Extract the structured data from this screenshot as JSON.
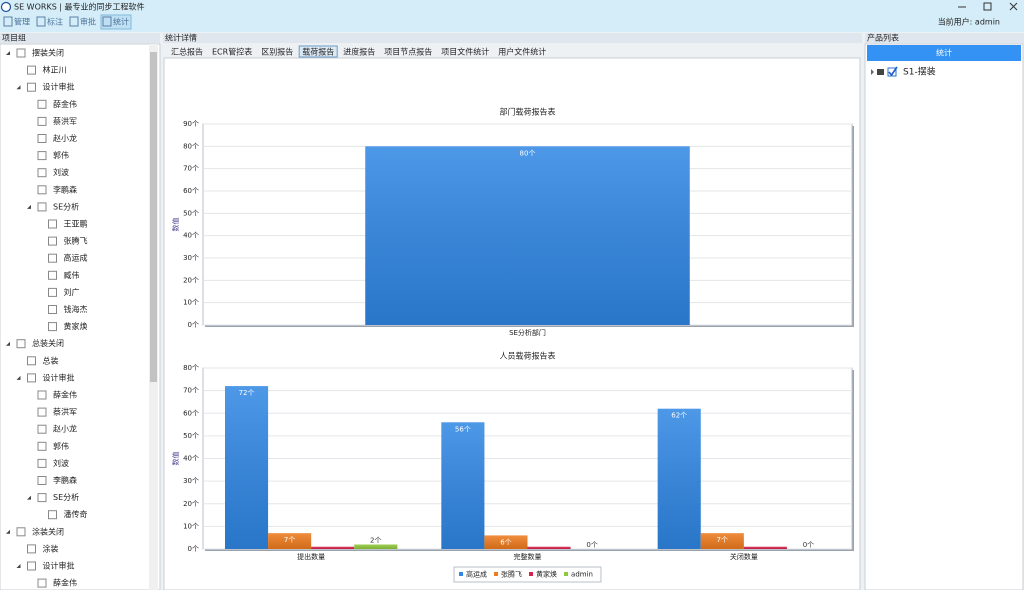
{
  "title_bar": {
    "title": "SE WORKS | 最专业的同步工程软件"
  },
  "toolbar": {
    "items": [
      "管理",
      "标注",
      "审批",
      "统计"
    ],
    "active": 3,
    "user": "当前用户: admin"
  },
  "left_panel": {
    "title": "项目组",
    "tree": [
      {
        "label": "摆装关闭",
        "children": [
          {
            "label": "林正川"
          },
          {
            "label": "设计审批",
            "children": [
              {
                "label": "薛金伟"
              },
              {
                "label": "蔡洪军"
              },
              {
                "label": "赵小龙"
              },
              {
                "label": "郭伟"
              },
              {
                "label": "刘波"
              },
              {
                "label": "李鹏森"
              },
              {
                "label": "SE分析",
                "children": [
                  {
                    "label": "王亚鹏"
                  },
                  {
                    "label": "张腾飞"
                  },
                  {
                    "label": "高运成"
                  },
                  {
                    "label": "臧伟"
                  },
                  {
                    "label": "刘广"
                  },
                  {
                    "label": "钱海杰"
                  },
                  {
                    "label": "黄家焕"
                  }
                ]
              }
            ]
          }
        ]
      },
      {
        "label": "总装关闭",
        "children": [
          {
            "label": "总装"
          },
          {
            "label": "设计审批",
            "children": [
              {
                "label": "薛金伟"
              },
              {
                "label": "蔡洪军"
              },
              {
                "label": "赵小龙"
              },
              {
                "label": "郭伟"
              },
              {
                "label": "刘波"
              },
              {
                "label": "李鹏森"
              },
              {
                "label": "SE分析",
                "children": [
                  {
                    "label": "潘传奇"
                  }
                ]
              }
            ]
          }
        ]
      },
      {
        "label": "涂装关闭",
        "children": [
          {
            "label": "涂装"
          },
          {
            "label": "设计审批",
            "children": [
              {
                "label": "薛金伟"
              }
            ]
          }
        ]
      }
    ]
  },
  "main_panel": {
    "title": "统计详情",
    "tabs": [
      "汇总报告",
      "ECR管控表",
      "区别报告",
      "载荷报告",
      "进度报告",
      "项目节点报告",
      "项目文件统计",
      "用户文件统计"
    ],
    "active_tab": 3
  },
  "chart_data": [
    {
      "type": "bar",
      "title": "部门载荷报告表",
      "ylabel": "数值",
      "categories": [
        "SE分析部门"
      ],
      "values": [
        80
      ],
      "value_labels": [
        "80个"
      ],
      "color": "#2f86e4",
      "ylim": [
        0,
        90
      ],
      "yticks": [
        {
          "value": 0,
          "label": "0个"
        },
        {
          "value": 10,
          "label": "10个"
        },
        {
          "value": 20,
          "label": "20个"
        },
        {
          "value": 30,
          "label": "30个"
        },
        {
          "value": 40,
          "label": "40个"
        },
        {
          "value": 50,
          "label": "50个"
        },
        {
          "value": 60,
          "label": "60个"
        },
        {
          "value": 70,
          "label": "70个"
        },
        {
          "value": 80,
          "label": "80个"
        },
        {
          "value": 90,
          "label": "90个"
        }
      ],
      "grid": true
    },
    {
      "type": "grouped_bar",
      "title": "人员载荷报告表",
      "ylabel": "数值",
      "categories": [
        "提出数量",
        "完整数量",
        "关闭数量"
      ],
      "series": [
        {
          "name": "高运成",
          "color": "#2f86e4",
          "values": [
            72,
            56,
            62
          ],
          "value_labels": [
            "72个",
            "56个",
            "62个"
          ]
        },
        {
          "name": "张腾飞",
          "color": "#ee7a1c",
          "values": [
            7,
            6,
            7
          ],
          "value_labels": [
            "7个",
            "6个",
            "7个"
          ]
        },
        {
          "name": "黄家焕",
          "color": "#d8204a",
          "values": [
            1,
            1,
            1
          ]
        },
        {
          "name": "admin",
          "color": "#8fc93a",
          "values": [
            2,
            0,
            0
          ],
          "value_labels": [
            "2个",
            "0个",
            "0个"
          ]
        }
      ],
      "ylim": [
        0,
        80
      ],
      "yticks": [
        {
          "value": 0,
          "label": "0个"
        },
        {
          "value": 10,
          "label": "10个"
        },
        {
          "value": 20,
          "label": "20个"
        },
        {
          "value": 30,
          "label": "30个"
        },
        {
          "value": 40,
          "label": "40个"
        },
        {
          "value": 50,
          "label": "50个"
        },
        {
          "value": 60,
          "label": "60个"
        },
        {
          "value": 70,
          "label": "70个"
        },
        {
          "value": 80,
          "label": "80个"
        }
      ],
      "grid": true,
      "legend": "bottom"
    }
  ],
  "right_panel": {
    "title": "产品列表",
    "button": "统计",
    "tree": [
      {
        "label": "S1-摆装",
        "checked": true
      }
    ]
  }
}
